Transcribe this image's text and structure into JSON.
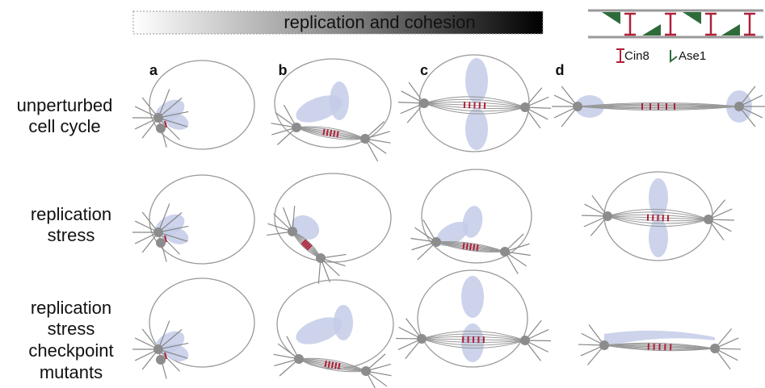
{
  "header": {
    "title": "replication and cohesion"
  },
  "legend": {
    "items": [
      "Cin8",
      "Ase1"
    ]
  },
  "columns": [
    "a",
    "b",
    "c",
    "d"
  ],
  "rows": [
    {
      "label_lines": [
        "unperturbed",
        "cell cycle"
      ]
    },
    {
      "label_lines": [
        "replication",
        "stress"
      ]
    },
    {
      "label_lines": [
        "replication",
        "stress",
        "checkpoint",
        "mutants"
      ]
    }
  ]
}
